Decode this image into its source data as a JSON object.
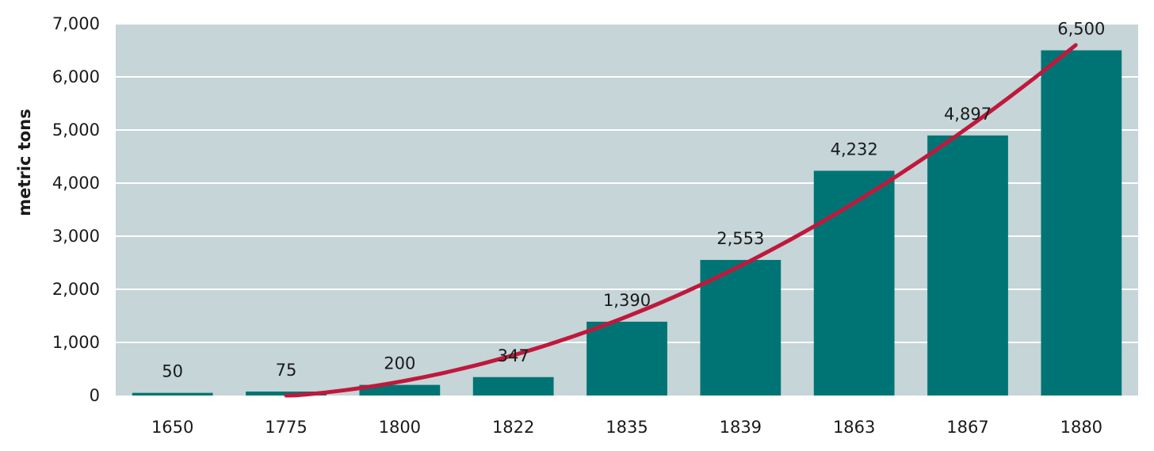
{
  "chart_data": {
    "type": "bar",
    "categories": [
      "1650",
      "1775",
      "1800",
      "1822",
      "1835",
      "1839",
      "1863",
      "1867",
      "1880"
    ],
    "values": [
      50,
      75,
      200,
      347,
      1390,
      2553,
      4232,
      4897,
      6500
    ],
    "data_labels": [
      "50",
      "75",
      "200",
      "347",
      "1,390",
      "2,553",
      "4,232",
      "4,897",
      "6,500"
    ],
    "title": "",
    "xlabel": "",
    "ylabel": "metric tons",
    "ylim": [
      0,
      7000
    ],
    "yticks": [
      0,
      1000,
      2000,
      3000,
      4000,
      5000,
      6000,
      7000
    ],
    "ytick_labels": [
      "0",
      "1,000",
      "2,000",
      "3,000",
      "4,000",
      "5,000",
      "6,000",
      "7,000"
    ],
    "grid": true,
    "legend": "none",
    "trend_line": true,
    "colors": {
      "bar": "#007474",
      "trend": "#c0183c",
      "plot_background": "#c5d5d8",
      "gridline": "#ffffff"
    }
  }
}
